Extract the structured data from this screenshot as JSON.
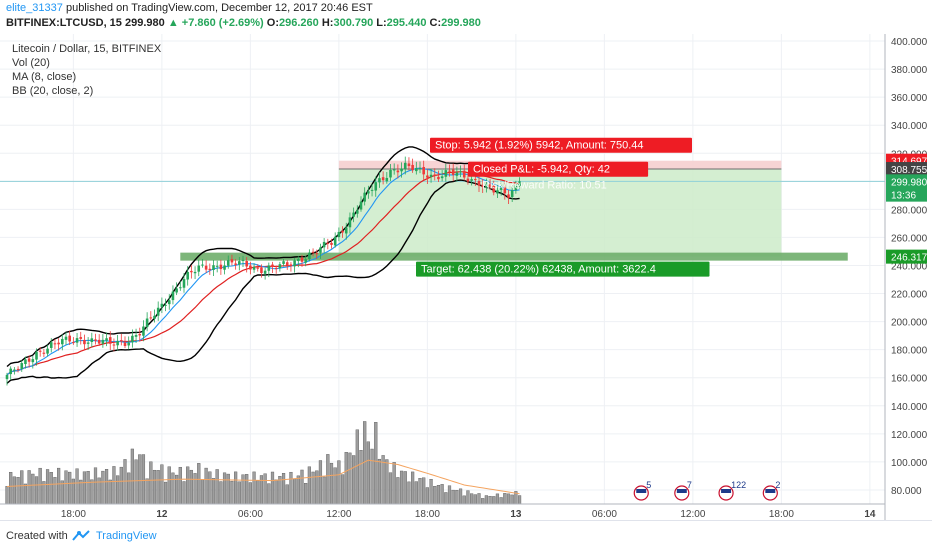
{
  "header": {
    "author": "elite_31337",
    "published_text": "published on TradingView.com, December 12, 2017 20:46 EST",
    "symbol": "BITFINEX:LTCUSD, 15",
    "last": "299.980",
    "change": "+7.860 (+2.69%)",
    "o_label": "O:",
    "o": "296.260",
    "h_label": "H:",
    "h": "300.790",
    "l_label": "L:",
    "l": "295.440",
    "c_label": "C:",
    "c": "299.980"
  },
  "legend": {
    "title": "Litecoin / Dollar, 15, BITFINEX",
    "vol": "Vol (20)",
    "ma": "MA (8, close)",
    "bb": "BB (20, close, 2)"
  },
  "footer": {
    "created": "Created with",
    "brand": "TradingView"
  },
  "colors": {
    "up": "#26a65b",
    "down": "#ef3a3a",
    "ma": "#2196f3",
    "bb_basis": "#e02020",
    "bb_band": "#000000",
    "volume": "#9e9e9e",
    "vol_ma": "#f4a460",
    "profit_zone": "#cdebc9",
    "stop_zone": "#f6cfcf",
    "target_label": "#1a9b28",
    "stop_label": "#ee1c24"
  },
  "chart_data": {
    "type": "candlestick",
    "title": "Litecoin / Dollar, 15, BITFINEX",
    "ylim": [
      70,
      405
    ],
    "y_ticks": [
      80,
      100,
      120,
      140,
      160,
      180,
      200,
      220,
      240,
      260,
      280,
      300,
      320,
      340,
      360,
      380,
      400
    ],
    "y_tick_labels": [
      "80.000",
      "100.000",
      "120.000",
      "140.000",
      "160.000",
      "180.000",
      "200.000",
      "220.000",
      "240.000",
      "260.000",
      "280.000",
      "300.000",
      "320.000",
      "340.000",
      "360.000",
      "380.000",
      "400.000"
    ],
    "x_ticks": [
      "18:00",
      "12",
      "06:00",
      "12:00",
      "18:00",
      "13",
      "06:00",
      "12:00",
      "18:00",
      "14"
    ],
    "x_tick_bold": [
      false,
      true,
      false,
      false,
      false,
      true,
      false,
      false,
      false,
      true
    ],
    "close_anchors": [
      [
        0,
        162
      ],
      [
        4,
        168
      ],
      [
        8,
        178
      ],
      [
        12,
        183
      ],
      [
        16,
        186
      ],
      [
        20,
        188
      ],
      [
        24,
        186
      ],
      [
        28,
        184
      ],
      [
        32,
        186
      ],
      [
        36,
        192
      ],
      [
        40,
        205
      ],
      [
        44,
        218
      ],
      [
        48,
        230
      ],
      [
        52,
        238
      ],
      [
        56,
        240
      ],
      [
        60,
        241
      ],
      [
        64,
        241
      ],
      [
        68,
        238
      ],
      [
        72,
        238
      ],
      [
        76,
        240
      ],
      [
        80,
        246
      ],
      [
        84,
        250
      ],
      [
        88,
        256
      ],
      [
        92,
        270
      ],
      [
        96,
        285
      ],
      [
        100,
        298
      ],
      [
        104,
        308
      ],
      [
        108,
        310
      ],
      [
        112,
        307
      ],
      [
        116,
        304
      ],
      [
        120,
        306
      ],
      [
        124,
        303
      ],
      [
        128,
        300
      ],
      [
        132,
        293
      ],
      [
        136,
        290
      ],
      [
        139,
        299.98
      ]
    ],
    "volume_anchors": [
      [
        0,
        22
      ],
      [
        10,
        25
      ],
      [
        20,
        24
      ],
      [
        30,
        26
      ],
      [
        34,
        38
      ],
      [
        36,
        40
      ],
      [
        38,
        30
      ],
      [
        46,
        25
      ],
      [
        52,
        28
      ],
      [
        56,
        24
      ],
      [
        62,
        22
      ],
      [
        70,
        22
      ],
      [
        78,
        22
      ],
      [
        84,
        28
      ],
      [
        87,
        35
      ],
      [
        90,
        30
      ],
      [
        94,
        44
      ],
      [
        96,
        58
      ],
      [
        97,
        60
      ],
      [
        98,
        48
      ],
      [
        100,
        56
      ],
      [
        102,
        36
      ],
      [
        106,
        26
      ],
      [
        112,
        20
      ],
      [
        118,
        14
      ],
      [
        124,
        10
      ],
      [
        130,
        6
      ],
      [
        136,
        8
      ],
      [
        139,
        9
      ]
    ],
    "volume_ma_anchors": [
      [
        0,
        12
      ],
      [
        24,
        15
      ],
      [
        48,
        17
      ],
      [
        72,
        16
      ],
      [
        90,
        20
      ],
      [
        98,
        30
      ],
      [
        106,
        27
      ],
      [
        114,
        21
      ],
      [
        124,
        13
      ],
      [
        139,
        7
      ]
    ],
    "volume_scale_max": 65,
    "bars_total_timeline": 224,
    "x_tick_bar_index": [
      18,
      42,
      66,
      90,
      114,
      138,
      162,
      186,
      210,
      234
    ],
    "series": [
      "Price",
      "MA (8, close)",
      "BB (20, close, 2)",
      "Vol (20)"
    ],
    "axis_badges": [
      {
        "value": 314.697,
        "label": "314.697",
        "color": "#ee1c24"
      },
      {
        "value": 308.755,
        "label": "308.755",
        "color": "#444444"
      },
      {
        "value": 299.98,
        "label": "299.980",
        "color": "#26a65b"
      },
      {
        "value": 290.5,
        "label": "13:36",
        "color": "#26a65b"
      },
      {
        "value": 246.317,
        "label": "246.317",
        "color": "#1a9b28"
      }
    ],
    "position": {
      "entry": 308.755,
      "stop": 314.697,
      "target": 246.317,
      "start_bar": 90,
      "end_bar": 210,
      "target_band_start_bar": 47,
      "target_band_end_bar": 228,
      "stop_label": "Stop: 5.942 (1.92%) 5942, Amount: 750.44",
      "target_label": "Target: 62.438 (20.22%) 62438, Amount: 3622.4",
      "closed_pl_label": "Closed P&L: -5.942, Qty: 42",
      "rr_label": "Risk/Reward Ratio: 10.51"
    },
    "horizontal_line": 299.98,
    "events": [
      {
        "bar": 172,
        "label": "5"
      },
      {
        "bar": 183,
        "label": "7"
      },
      {
        "bar": 195,
        "label": "122"
      },
      {
        "bar": 207,
        "label": "2"
      }
    ]
  }
}
